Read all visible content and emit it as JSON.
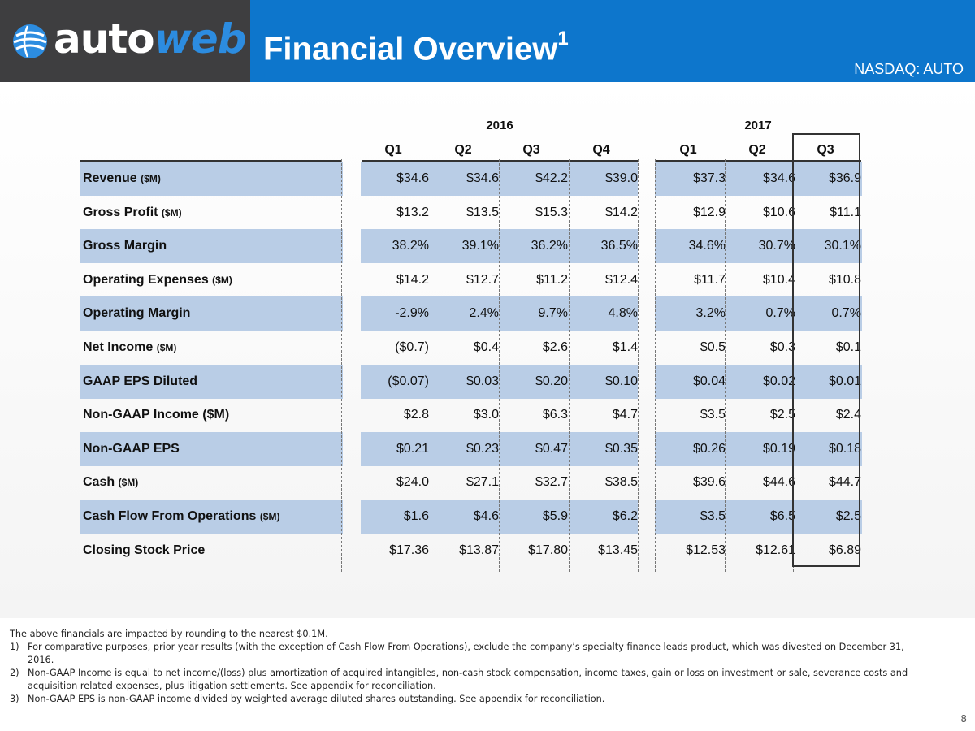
{
  "header": {
    "logo_auto": "auto",
    "logo_web": "web",
    "title": "Financial Overview",
    "title_sup": "1",
    "ticker": "NASDAQ: AUTO",
    "colors": {
      "logo_bg": "#3e3e40",
      "banner": "#0d76cc",
      "row_shade": "#b9cde6"
    }
  },
  "table": {
    "years": [
      "2016",
      "2017"
    ],
    "quarters": [
      "Q1",
      "Q2",
      "Q3",
      "Q4",
      "Q1",
      "Q2",
      "Q3"
    ],
    "rows": [
      {
        "label": "Revenue",
        "unit": "($M)",
        "values": [
          "$34.6",
          "$34.6",
          "$42.2",
          "$39.0",
          "$37.3",
          "$34.6",
          "$36.9"
        ]
      },
      {
        "label": "Gross Profit",
        "unit": "($M)",
        "values": [
          "$13.2",
          "$13.5",
          "$15.3",
          "$14.2",
          "$12.9",
          "$10.6",
          "$11.1"
        ]
      },
      {
        "label": "Gross Margin",
        "unit": "",
        "values": [
          "38.2%",
          "39.1%",
          "36.2%",
          "36.5%",
          "34.6%",
          "30.7%",
          "30.1%"
        ]
      },
      {
        "label": "Operating Expenses",
        "unit": "($M)",
        "values": [
          "$14.2",
          "$12.7",
          "$11.2",
          "$12.4",
          "$11.7",
          "$10.4",
          "$10.8"
        ]
      },
      {
        "label": "Operating Margin",
        "unit": "",
        "values": [
          "-2.9%",
          "2.4%",
          "9.7%",
          "4.8%",
          "3.2%",
          "0.7%",
          "0.7%"
        ]
      },
      {
        "label": "Net Income",
        "unit": "($M)",
        "values": [
          "($0.7)",
          "$0.4",
          "$2.6",
          "$1.4",
          "$0.5",
          "$0.3",
          "$0.1"
        ]
      },
      {
        "label": "GAAP EPS Diluted",
        "unit": "",
        "values": [
          "($0.07)",
          "$0.03",
          "$0.20",
          "$0.10",
          "$0.04",
          "$0.02",
          "$0.01"
        ]
      },
      {
        "label": "Non-GAAP Income ($M)",
        "unit": "",
        "values": [
          "$2.8",
          "$3.0",
          "$6.3",
          "$4.7",
          "$3.5",
          "$2.5",
          "$2.4"
        ]
      },
      {
        "label": "Non-GAAP EPS",
        "unit": "",
        "values": [
          "$0.21",
          "$0.23",
          "$0.47",
          "$0.35",
          "$0.26",
          "$0.19",
          "$0.18"
        ]
      },
      {
        "label": "Cash",
        "unit": "($M)",
        "values": [
          "$24.0",
          "$27.1",
          "$32.7",
          "$38.5",
          "$39.6",
          "$44.6",
          "$44.7"
        ]
      },
      {
        "label": "Cash Flow From Operations",
        "unit": "($M)",
        "values": [
          "$1.6",
          "$4.6",
          "$5.9",
          "$6.2",
          "$3.5",
          "$6.5",
          "$2.5"
        ]
      },
      {
        "label": "Closing Stock Price",
        "unit": "",
        "values": [
          "$17.36",
          "$13.87",
          "$17.80",
          "$13.45",
          "$12.53",
          "$12.61",
          "$6.89"
        ]
      }
    ]
  },
  "footnotes": {
    "intro": "The above financials are impacted by rounding to the nearest $0.1M.",
    "items": [
      {
        "num": "1)",
        "text": "For comparative purposes, prior year results (with the exception of Cash Flow From Operations), exclude the company’s specialty finance leads product, which was divested on December 31, 2016."
      },
      {
        "num": "2)",
        "text": "Non-GAAP Income is equal to net income/(loss) plus amortization of acquired intangibles, non-cash stock compensation, income taxes, gain or loss on investment or sale, severance costs and acquisition related expenses, plus litigation settlements. See appendix for reconciliation."
      },
      {
        "num": "3)",
        "text": "Non-GAAP EPS is non-GAAP income divided by weighted average diluted shares outstanding. See appendix for reconciliation."
      }
    ]
  },
  "page_number": "8"
}
